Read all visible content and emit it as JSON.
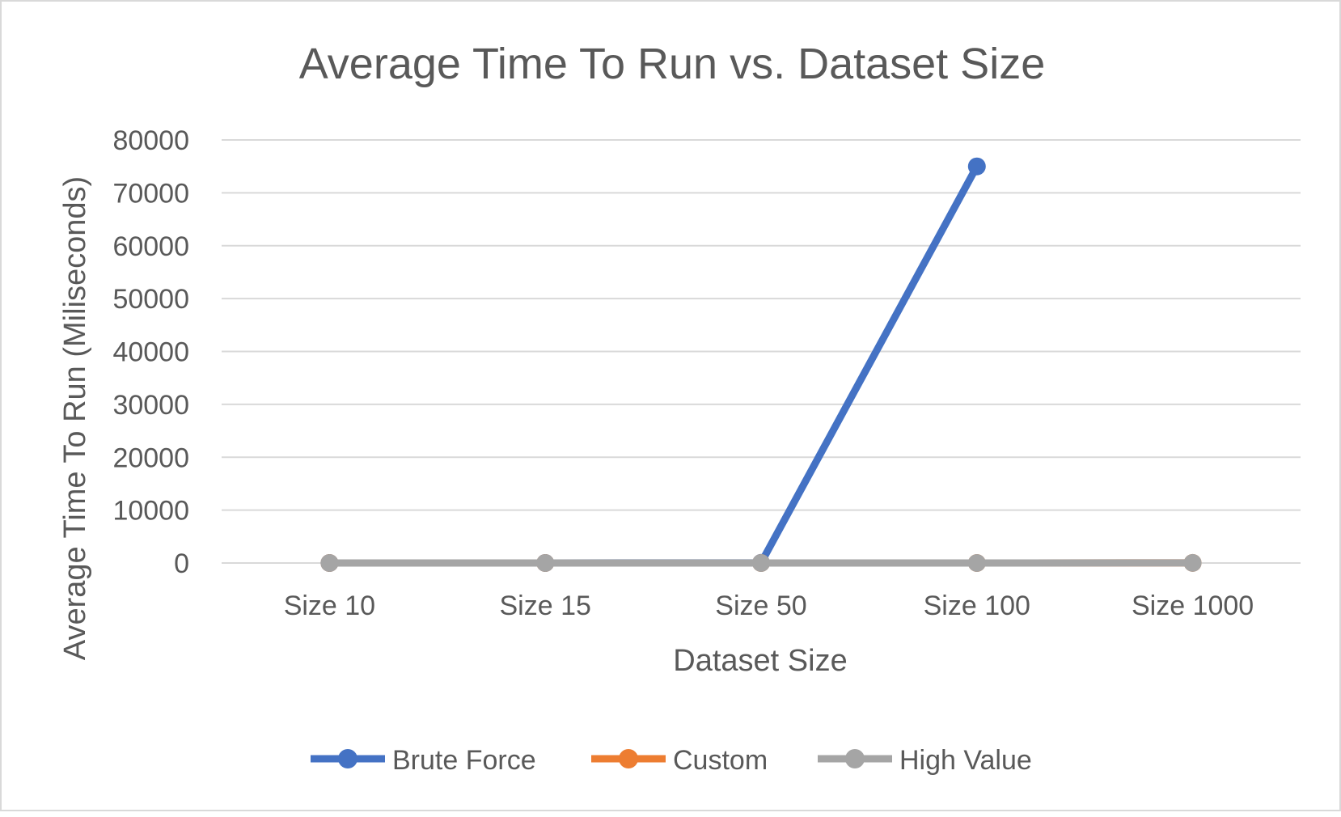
{
  "chart_data": {
    "type": "line",
    "title": "Average Time To Run vs. Dataset Size",
    "xlabel": "Dataset Size",
    "ylabel": "Average Time To Run (Miliseconds)",
    "categories": [
      "Size 10",
      "Size 15",
      "Size 50",
      "Size 100",
      "Size 1000"
    ],
    "ylim": [
      0,
      80000
    ],
    "yticks": [
      0,
      10000,
      20000,
      30000,
      40000,
      50000,
      60000,
      70000,
      80000
    ],
    "grid": true,
    "legend_position": "bottom",
    "series": [
      {
        "name": "Brute Force",
        "color": "#4472c4",
        "values": [
          2,
          5,
          30,
          75000,
          null
        ]
      },
      {
        "name": "Custom",
        "color": "#ed7d31",
        "values": [
          1,
          1,
          2,
          3,
          20
        ]
      },
      {
        "name": "High Value",
        "color": "#a5a5a5",
        "values": [
          1,
          1,
          2,
          3,
          20
        ]
      }
    ],
    "colors": {
      "grid": "#d9d9d9",
      "text": "#595959",
      "border": "#d9d9d9"
    }
  }
}
